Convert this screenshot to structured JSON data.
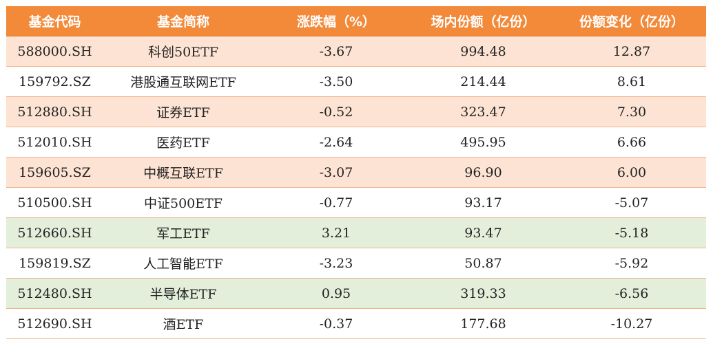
{
  "headers": {
    "code": "基金代码",
    "name": "基金简称",
    "pct": "涨跌幅（%）",
    "shares": "场内份额（亿份）",
    "change": "份额变化（亿份）"
  },
  "colors": {
    "header_bg": "#f28a3a",
    "row_orange": "#fde3d3",
    "row_green": "#e3efdb",
    "row_white": "#ffffff"
  },
  "rows": [
    {
      "code": "588000.SH",
      "name": "科创50ETF",
      "pct": "-3.67",
      "shares": "994.48",
      "change": "12.87",
      "tone": "orange"
    },
    {
      "code": "159792.SZ",
      "name": "港股通互联网ETF",
      "pct": "-3.50",
      "shares": "214.44",
      "change": "8.61",
      "tone": "white"
    },
    {
      "code": "512880.SH",
      "name": "证券ETF",
      "pct": "-0.52",
      "shares": "323.47",
      "change": "7.30",
      "tone": "orange"
    },
    {
      "code": "512010.SH",
      "name": "医药ETF",
      "pct": "-2.64",
      "shares": "495.95",
      "change": "6.66",
      "tone": "white"
    },
    {
      "code": "159605.SZ",
      "name": "中概互联ETF",
      "pct": "-3.07",
      "shares": "96.90",
      "change": "6.00",
      "tone": "orange"
    },
    {
      "code": "510500.SH",
      "name": "中证500ETF",
      "pct": "-0.77",
      "shares": "93.17",
      "change": "-5.07",
      "tone": "white"
    },
    {
      "code": "512660.SH",
      "name": "军工ETF",
      "pct": "3.21",
      "shares": "93.47",
      "change": "-5.18",
      "tone": "green"
    },
    {
      "code": "159819.SZ",
      "name": "人工智能ETF",
      "pct": "-3.23",
      "shares": "50.87",
      "change": "-5.92",
      "tone": "white"
    },
    {
      "code": "512480.SH",
      "name": "半导体ETF",
      "pct": "0.95",
      "shares": "319.33",
      "change": "-6.56",
      "tone": "green"
    },
    {
      "code": "512690.SH",
      "name": "酒ETF",
      "pct": "-0.37",
      "shares": "177.68",
      "change": "-10.27",
      "tone": "white"
    }
  ]
}
